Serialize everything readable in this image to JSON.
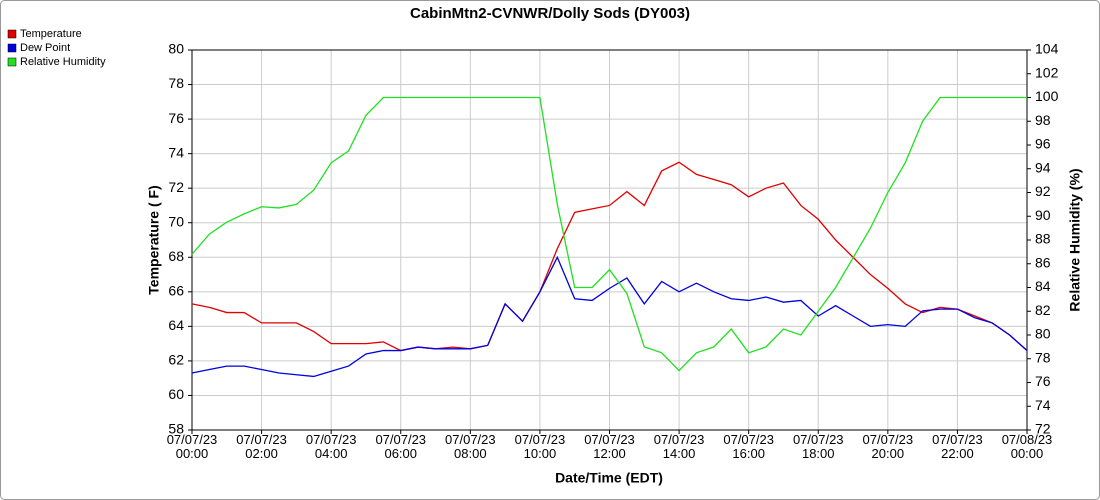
{
  "chart_data": {
    "type": "line",
    "title": "CabinMtn2-CVNWR/Dolly Sods (DY003)",
    "x_label": "Date/Time (EDT)",
    "y_label": "Temperature ( F)",
    "y2_label": "Relative Humidity (%)",
    "x": [
      0,
      0.5,
      1,
      1.5,
      2,
      2.5,
      3,
      3.5,
      4,
      4.5,
      5,
      5.5,
      6,
      6.5,
      7,
      7.5,
      8,
      8.5,
      9,
      9.5,
      10,
      10.5,
      11,
      11.5,
      12,
      12.5,
      13,
      13.5,
      14,
      14.5,
      15,
      15.5,
      16,
      16.5,
      17,
      17.5,
      18,
      18.5,
      19,
      19.5,
      20,
      20.5,
      21,
      21.5,
      22,
      22.5,
      23,
      23.5,
      24
    ],
    "xlim": [
      0,
      24
    ],
    "xticks": [
      {
        "value": 0,
        "label": "07/07/23 00:00"
      },
      {
        "value": 2,
        "label": "07/07/23 02:00"
      },
      {
        "value": 4,
        "label": "07/07/23 04:00"
      },
      {
        "value": 6,
        "label": "07/07/23 06:00"
      },
      {
        "value": 8,
        "label": "07/07/23 08:00"
      },
      {
        "value": 10,
        "label": "07/07/23 10:00"
      },
      {
        "value": 12,
        "label": "07/07/23 12:00"
      },
      {
        "value": 14,
        "label": "07/07/23 14:00"
      },
      {
        "value": 16,
        "label": "07/07/23 16:00"
      },
      {
        "value": 18,
        "label": "07/07/23 18:00"
      },
      {
        "value": 20,
        "label": "07/07/23 20:00"
      },
      {
        "value": 22,
        "label": "07/07/23 22:00"
      },
      {
        "value": 24,
        "label": "07/08/23 00:00"
      }
    ],
    "ylim": [
      58,
      80
    ],
    "yticks": [
      58,
      60,
      62,
      64,
      66,
      68,
      70,
      72,
      74,
      76,
      78,
      80
    ],
    "y2lim": [
      72,
      104
    ],
    "y2ticks": [
      72,
      74,
      76,
      78,
      80,
      82,
      84,
      86,
      88,
      90,
      92,
      94,
      96,
      98,
      100,
      102,
      104
    ],
    "grid": true,
    "legend": "top-left",
    "series": [
      {
        "name": "Temperature",
        "color": "#e00000",
        "values": [
          65.3,
          65.1,
          64.8,
          64.8,
          64.2,
          64.2,
          64.2,
          63.7,
          63.0,
          63.0,
          63.0,
          63.1,
          62.6,
          62.8,
          62.7,
          62.8,
          62.7,
          62.9,
          65.3,
          64.3,
          66.0,
          68.5,
          70.6,
          70.8,
          71.0,
          71.8,
          71.0,
          73.0,
          73.5,
          72.8,
          72.5,
          72.2,
          71.5,
          72.0,
          72.3,
          71.0,
          70.2,
          69.0,
          68.0,
          67.0,
          66.2,
          65.3,
          64.8,
          65.1,
          65.0,
          64.6,
          64.2,
          63.5,
          62.6
        ]
      },
      {
        "name": "Dew Point",
        "color": "#0000e0",
        "values": [
          61.3,
          61.5,
          61.7,
          61.7,
          61.5,
          61.3,
          61.2,
          61.1,
          61.4,
          61.7,
          62.4,
          62.6,
          62.6,
          62.8,
          62.7,
          62.7,
          62.7,
          62.9,
          65.3,
          64.3,
          66.0,
          68.0,
          65.6,
          65.5,
          66.2,
          66.8,
          65.3,
          66.6,
          66.0,
          66.5,
          66.0,
          65.6,
          65.5,
          65.7,
          65.4,
          65.5,
          64.6,
          65.2,
          64.6,
          64.0,
          64.1,
          64.0,
          64.9,
          65.0,
          65.0,
          64.5,
          64.2,
          63.5,
          62.6
        ]
      },
      {
        "name": "Relative Humidity",
        "color": "#20e020",
        "axis": "y2",
        "values": [
          86.8,
          88.5,
          89.5,
          90.2,
          90.8,
          90.7,
          91.0,
          92.2,
          94.5,
          95.5,
          98.5,
          100,
          100,
          100,
          100,
          100,
          100,
          100,
          100,
          100,
          100,
          91,
          84,
          84,
          85.5,
          83.5,
          79,
          78.5,
          77,
          78.5,
          79,
          80.5,
          78.5,
          79,
          80.5,
          80,
          82,
          84,
          86.5,
          89,
          92,
          94.5,
          98,
          100,
          100,
          100,
          100,
          100,
          100
        ]
      }
    ]
  }
}
